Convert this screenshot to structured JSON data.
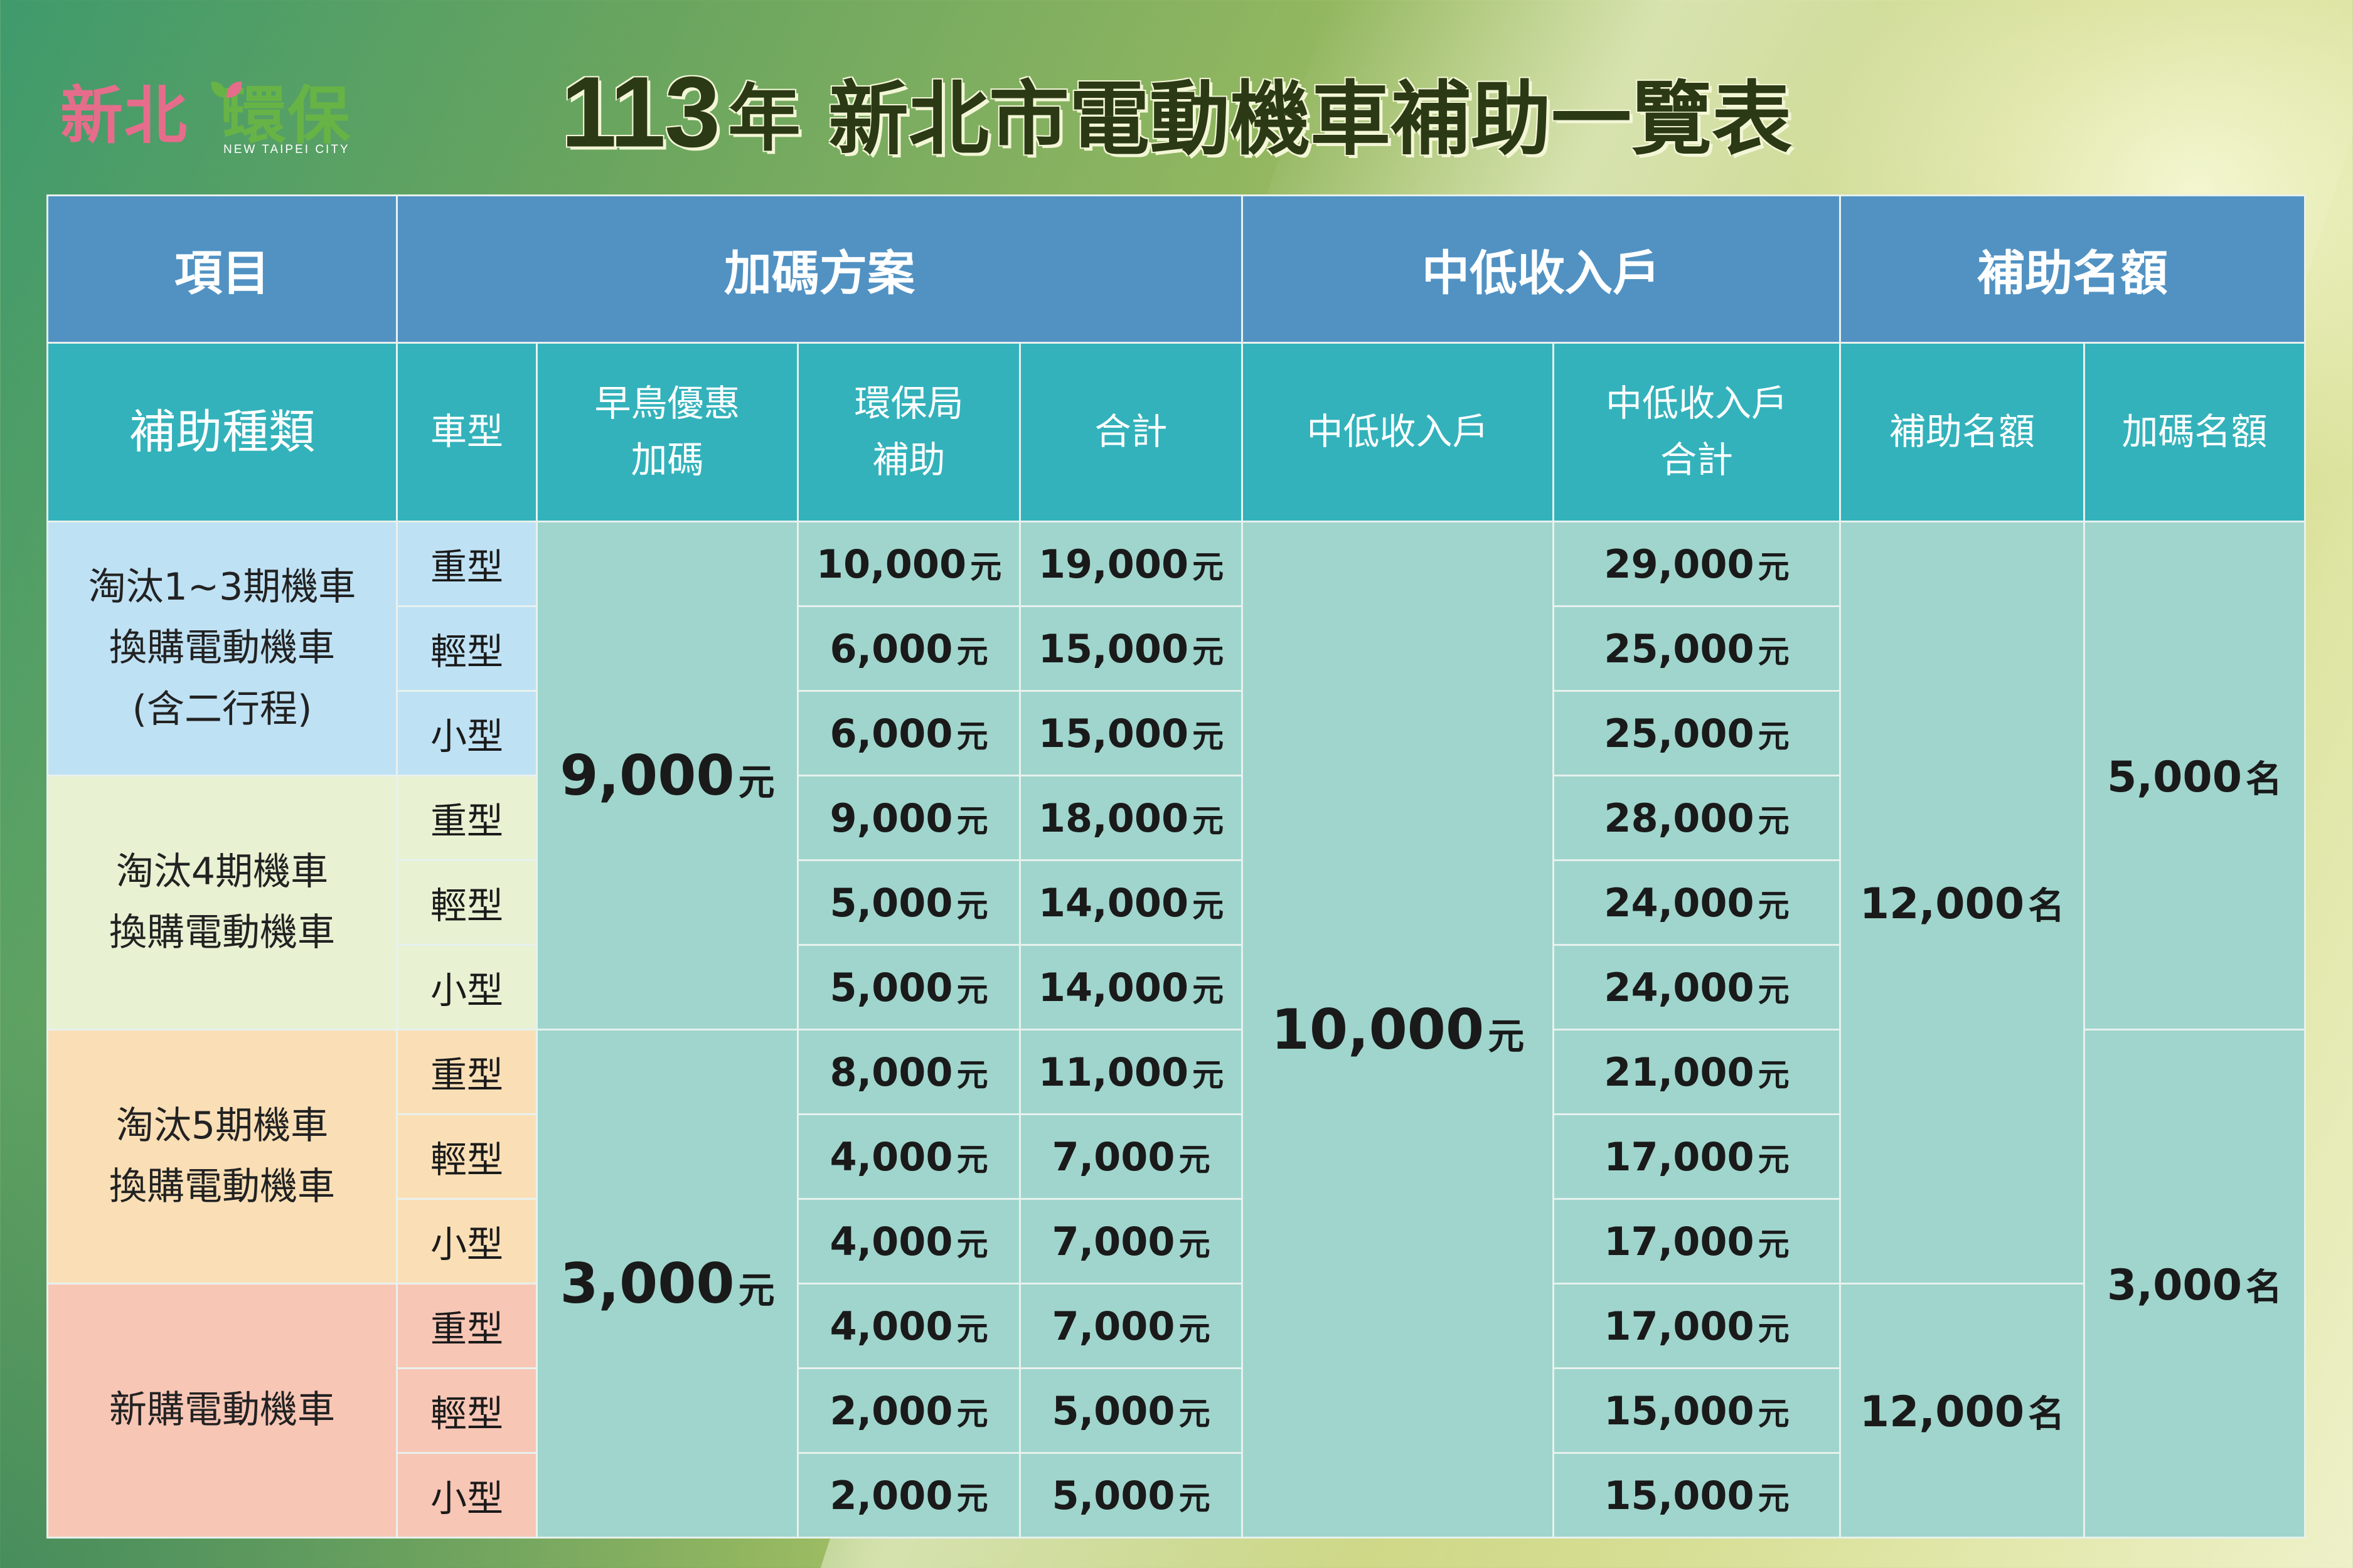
{
  "logo": {
    "text_a": "新北",
    "text_b": "環保",
    "en": "NEW TAIPEI CITY"
  },
  "title": {
    "year": "113",
    "nian": "年",
    "rest": "新北市電動機車補助一覽表"
  },
  "header1": {
    "item": "項目",
    "bonus": "加碼方案",
    "low_income": "中低收入戶",
    "quota": "補助名額"
  },
  "header2": {
    "subsidy_type": "補助種類",
    "vehicle_type": "車型",
    "early_bird_l1": "早鳥優惠",
    "early_bird_l2": "加碼",
    "epb_l1": "環保局",
    "epb_l2": "補助",
    "total": "合計",
    "low_income": "中低收入戶",
    "low_total_l1": "中低收入戶",
    "low_total_l2": "合計",
    "quota": "補助名額",
    "bonus_quota": "加碼名額"
  },
  "categories": [
    {
      "lines": [
        "淘汰1~3期機車",
        "換購電動機車",
        "(含二行程)"
      ]
    },
    {
      "lines": [
        "淘汰4期機車",
        "換購電動機車"
      ]
    },
    {
      "lines": [
        "淘汰5期機車",
        "換購電動機車"
      ]
    },
    {
      "lines": [
        "新購電動機車"
      ]
    }
  ],
  "unit_yuan": "元",
  "unit_ming": "名",
  "early_bird": [
    "9,000",
    "3,000"
  ],
  "low_income_amount": "10,000",
  "quota": [
    "12,000",
    "12,000"
  ],
  "bonus_quota": [
    "5,000",
    "3,000"
  ],
  "rows": [
    {
      "type": "重型",
      "epb": "10,000",
      "total": "19,000",
      "low_total": "29,000"
    },
    {
      "type": "輕型",
      "epb": "6,000",
      "total": "15,000",
      "low_total": "25,000"
    },
    {
      "type": "小型",
      "epb": "6,000",
      "total": "15,000",
      "low_total": "25,000"
    },
    {
      "type": "重型",
      "epb": "9,000",
      "total": "18,000",
      "low_total": "28,000"
    },
    {
      "type": "輕型",
      "epb": "5,000",
      "total": "14,000",
      "low_total": "24,000"
    },
    {
      "type": "小型",
      "epb": "5,000",
      "total": "14,000",
      "low_total": "24,000"
    },
    {
      "type": "重型",
      "epb": "8,000",
      "total": "11,000",
      "low_total": "21,000"
    },
    {
      "type": "輕型",
      "epb": "4,000",
      "total": "7,000",
      "low_total": "17,000"
    },
    {
      "type": "小型",
      "epb": "4,000",
      "total": "7,000",
      "low_total": "17,000"
    },
    {
      "type": "重型",
      "epb": "4,000",
      "total": "7,000",
      "low_total": "17,000"
    },
    {
      "type": "輕型",
      "epb": "2,000",
      "total": "5,000",
      "low_total": "15,000"
    },
    {
      "type": "小型",
      "epb": "2,000",
      "total": "5,000",
      "low_total": "15,000"
    }
  ],
  "colors": {
    "header_blue": "#5192c3",
    "header_teal": "#33b2bb",
    "value_cell": "#9fd5cc",
    "category_1": "#bfe1f4",
    "category_2": "#e8f1d2",
    "category_3": "#fadfb6",
    "category_4": "#f8c6b5",
    "title_text": "#2b3a14",
    "logo_pink": "#e56d8b",
    "logo_green": "#67b346"
  }
}
